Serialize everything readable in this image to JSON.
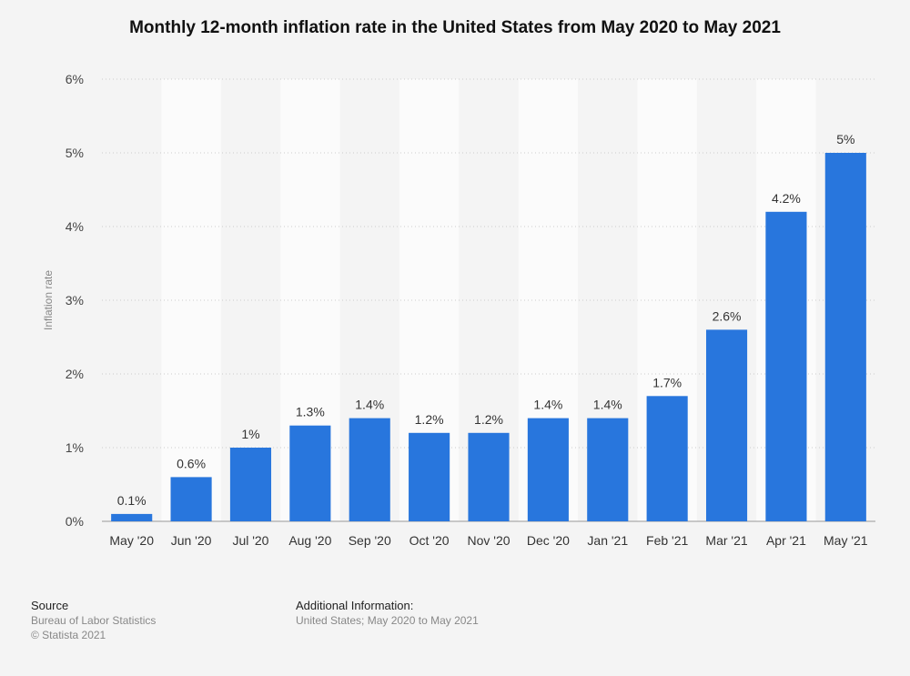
{
  "chart_data": {
    "type": "bar",
    "title": "Monthly 12-month inflation rate in the United States from May 2020 to May 2021",
    "xlabel": "",
    "ylabel": "Inflation rate",
    "categories": [
      "May '20",
      "Jun '20",
      "Jul '20",
      "Aug '20",
      "Sep '20",
      "Oct '20",
      "Nov '20",
      "Dec '20",
      "Jan '21",
      "Feb '21",
      "Mar '21",
      "Apr '21",
      "May '21"
    ],
    "values": [
      0.1,
      0.6,
      1,
      1.3,
      1.4,
      1.2,
      1.2,
      1.4,
      1.4,
      1.7,
      2.6,
      4.2,
      5
    ],
    "value_labels": [
      "0.1%",
      "0.6%",
      "1%",
      "1.3%",
      "1.4%",
      "1.2%",
      "1.2%",
      "1.4%",
      "1.4%",
      "1.7%",
      "2.6%",
      "4.2%",
      "5%"
    ],
    "ylim": [
      0,
      6
    ],
    "yticks": [
      0,
      1,
      2,
      3,
      4,
      5,
      6
    ],
    "ytick_labels": [
      "0%",
      "1%",
      "2%",
      "3%",
      "4%",
      "5%",
      "6%"
    ],
    "bar_color": "#2876dd",
    "grid": true
  },
  "footer": {
    "source_heading": "Source",
    "source_lines": [
      "Bureau of Labor Statistics",
      "© Statista 2021"
    ],
    "additional_heading": "Additional Information:",
    "additional_lines": [
      "United States; May 2020 to May 2021"
    ]
  }
}
